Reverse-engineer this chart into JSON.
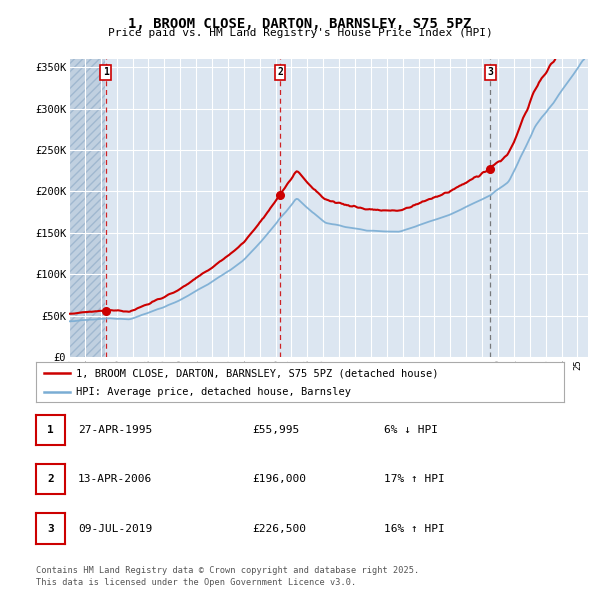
{
  "title": "1, BROOM CLOSE, DARTON, BARNSLEY, S75 5PZ",
  "subtitle": "Price paid vs. HM Land Registry's House Price Index (HPI)",
  "bg_color": "#dce6f1",
  "grid_color": "#ffffff",
  "red_line_color": "#cc0000",
  "blue_line_color": "#7aadd4",
  "hatch_color": "#c0d0e0",
  "sale_dates": [
    "1995-04-27",
    "2006-04-13",
    "2019-07-09"
  ],
  "sale_prices": [
    55995,
    196000,
    226500
  ],
  "sale_labels": [
    "1",
    "2",
    "3"
  ],
  "ylim": [
    0,
    360000
  ],
  "yticks": [
    0,
    50000,
    100000,
    150000,
    200000,
    250000,
    300000,
    350000
  ],
  "ylabel_fmt": [
    "£0",
    "£50K",
    "£100K",
    "£150K",
    "£200K",
    "£250K",
    "£300K",
    "£350K"
  ],
  "legend_label_red": "1, BROOM CLOSE, DARTON, BARNSLEY, S75 5PZ (detached house)",
  "legend_label_blue": "HPI: Average price, detached house, Barnsley",
  "footer": "Contains HM Land Registry data © Crown copyright and database right 2025.\nThis data is licensed under the Open Government Licence v3.0.",
  "table_rows": [
    [
      "1",
      "27-APR-1995",
      "£55,995",
      "6% ↓ HPI"
    ],
    [
      "2",
      "13-APR-2006",
      "£196,000",
      "17% ↑ HPI"
    ],
    [
      "3",
      "09-JUL-2019",
      "£226,500",
      "16% ↑ HPI"
    ]
  ]
}
